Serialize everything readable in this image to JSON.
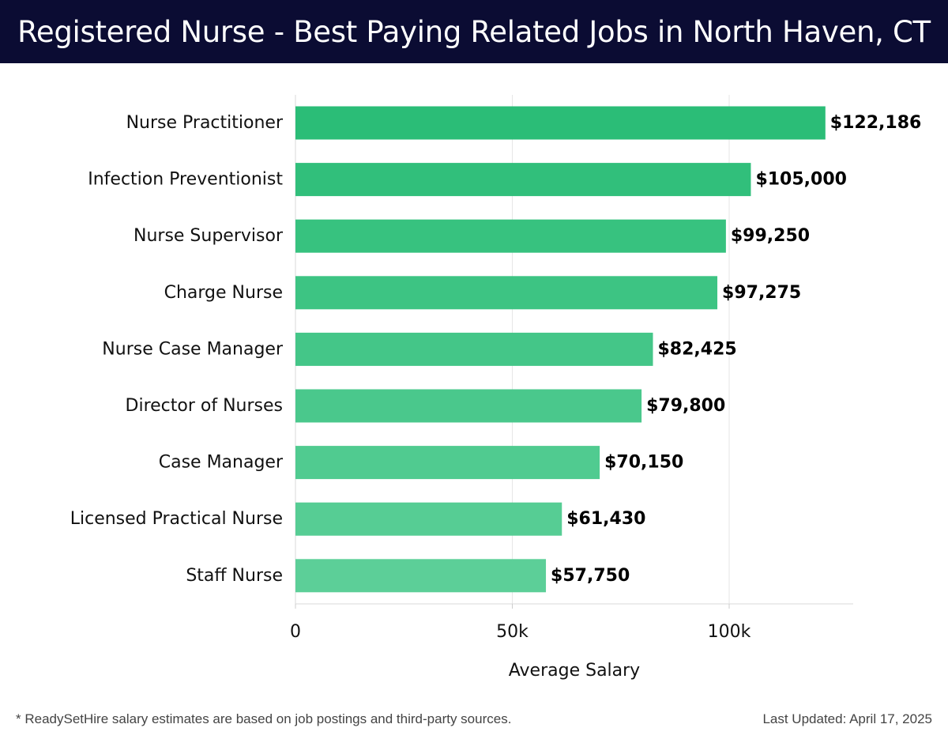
{
  "header": {
    "title": "Registered Nurse - Best Paying Related Jobs in North Haven, CT",
    "background": "#0b0c33"
  },
  "chart_data": {
    "type": "bar",
    "orientation": "horizontal",
    "categories": [
      "Nurse Practitioner",
      "Infection Preventionist",
      "Nurse Supervisor",
      "Charge Nurse",
      "Nurse Case Manager",
      "Director of Nurses",
      "Case Manager",
      "Licensed Practical Nurse",
      "Staff Nurse"
    ],
    "values": [
      122186,
      105000,
      99250,
      97275,
      82425,
      79800,
      70150,
      61430,
      57750
    ],
    "value_labels": [
      "$122,186",
      "$105,000",
      "$99,250",
      "$97,275",
      "$82,425",
      "$79,800",
      "$70,150",
      "$61,430",
      "$57,750"
    ],
    "xlabel": "Average Salary",
    "ylabel": "",
    "xlim": [
      0,
      128500
    ],
    "x_ticks": [
      0,
      50000,
      100000
    ],
    "x_tick_labels": [
      "0",
      "50k",
      "100k"
    ],
    "grid": "vertical",
    "bar_color_top": "#2bbd77",
    "bar_color_bottom": "#5ccf98"
  },
  "footer": {
    "note": "* ReadySetHire salary estimates are based on job postings and third-party sources.",
    "updated": "Last Updated: April 17, 2025"
  }
}
